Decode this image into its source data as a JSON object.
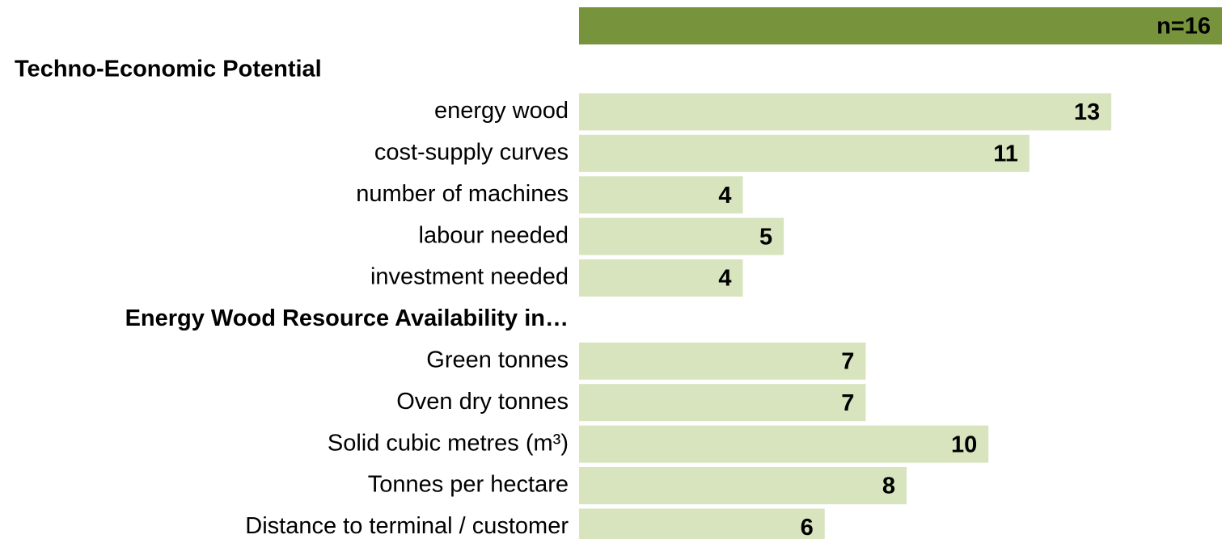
{
  "chart_data": {
    "type": "bar",
    "orientation": "horizontal",
    "total": {
      "value": 16,
      "value_label": "n=16",
      "color": "#77933c"
    },
    "color": "#d7e4bd",
    "xlim": [
      0,
      16
    ],
    "groups": [
      {
        "title": "Techno-Economic Potential",
        "categories": [
          "energy wood",
          "cost-supply curves",
          "number of machines",
          "labour needed",
          "investment needed"
        ],
        "values": [
          13,
          11,
          4,
          5,
          4
        ]
      },
      {
        "title": "Energy Wood Resource Availability in…",
        "categories": [
          "Green tonnes",
          "Oven dry tonnes",
          "Solid cubic metres (m³)",
          "Tonnes per hectare",
          "Distance to terminal / customer"
        ],
        "values": [
          7,
          7,
          10,
          8,
          6
        ]
      }
    ]
  }
}
